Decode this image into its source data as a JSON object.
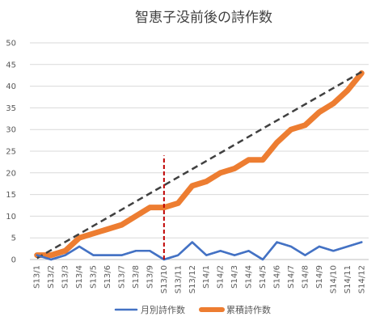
{
  "chart_data": {
    "type": "line",
    "title": "智恵子没前後の詩作数",
    "categories": [
      "S13/1",
      "S13/2",
      "S13/3",
      "S13/4",
      "S13/5",
      "S13/6",
      "S13/7",
      "S13/8",
      "S13/9",
      "S13/10",
      "S13/11",
      "S13/12",
      "S14/1",
      "S14/2",
      "S14/3",
      "S14/4",
      "S14/5",
      "S14/6",
      "S14/7",
      "S14/8",
      "S14/9",
      "S14/10",
      "S14/11",
      "S14/12"
    ],
    "ylim": [
      0,
      50
    ],
    "yticks": [
      0,
      5,
      10,
      15,
      20,
      25,
      30,
      35,
      40,
      45,
      50
    ],
    "grid": true,
    "legend_position": "bottom",
    "series": [
      {
        "name": "月別詩作数",
        "color": "#4472C4",
        "values": [
          1,
          0,
          1,
          3,
          1,
          1,
          1,
          2,
          2,
          0,
          1,
          4,
          1,
          2,
          1,
          2,
          0,
          4,
          3,
          1,
          3,
          2,
          3,
          4
        ]
      },
      {
        "name": "累積詩作数",
        "color": "#ED7D31",
        "values": [
          1,
          1,
          2,
          5,
          6,
          7,
          8,
          10,
          12,
          12,
          13,
          17,
          18,
          20,
          21,
          23,
          23,
          27,
          30,
          31,
          34,
          36,
          39,
          43
        ]
      }
    ],
    "trendline": {
      "style": "dashed",
      "color": "#404040",
      "x_start": "S13/1",
      "y_start": 0.3,
      "x_end": "S14/12",
      "y_end": 43.3
    },
    "reference_line": {
      "x": "S13/10",
      "y_range": [
        0,
        24
      ],
      "color": "#C00000",
      "style": "dashed"
    }
  }
}
